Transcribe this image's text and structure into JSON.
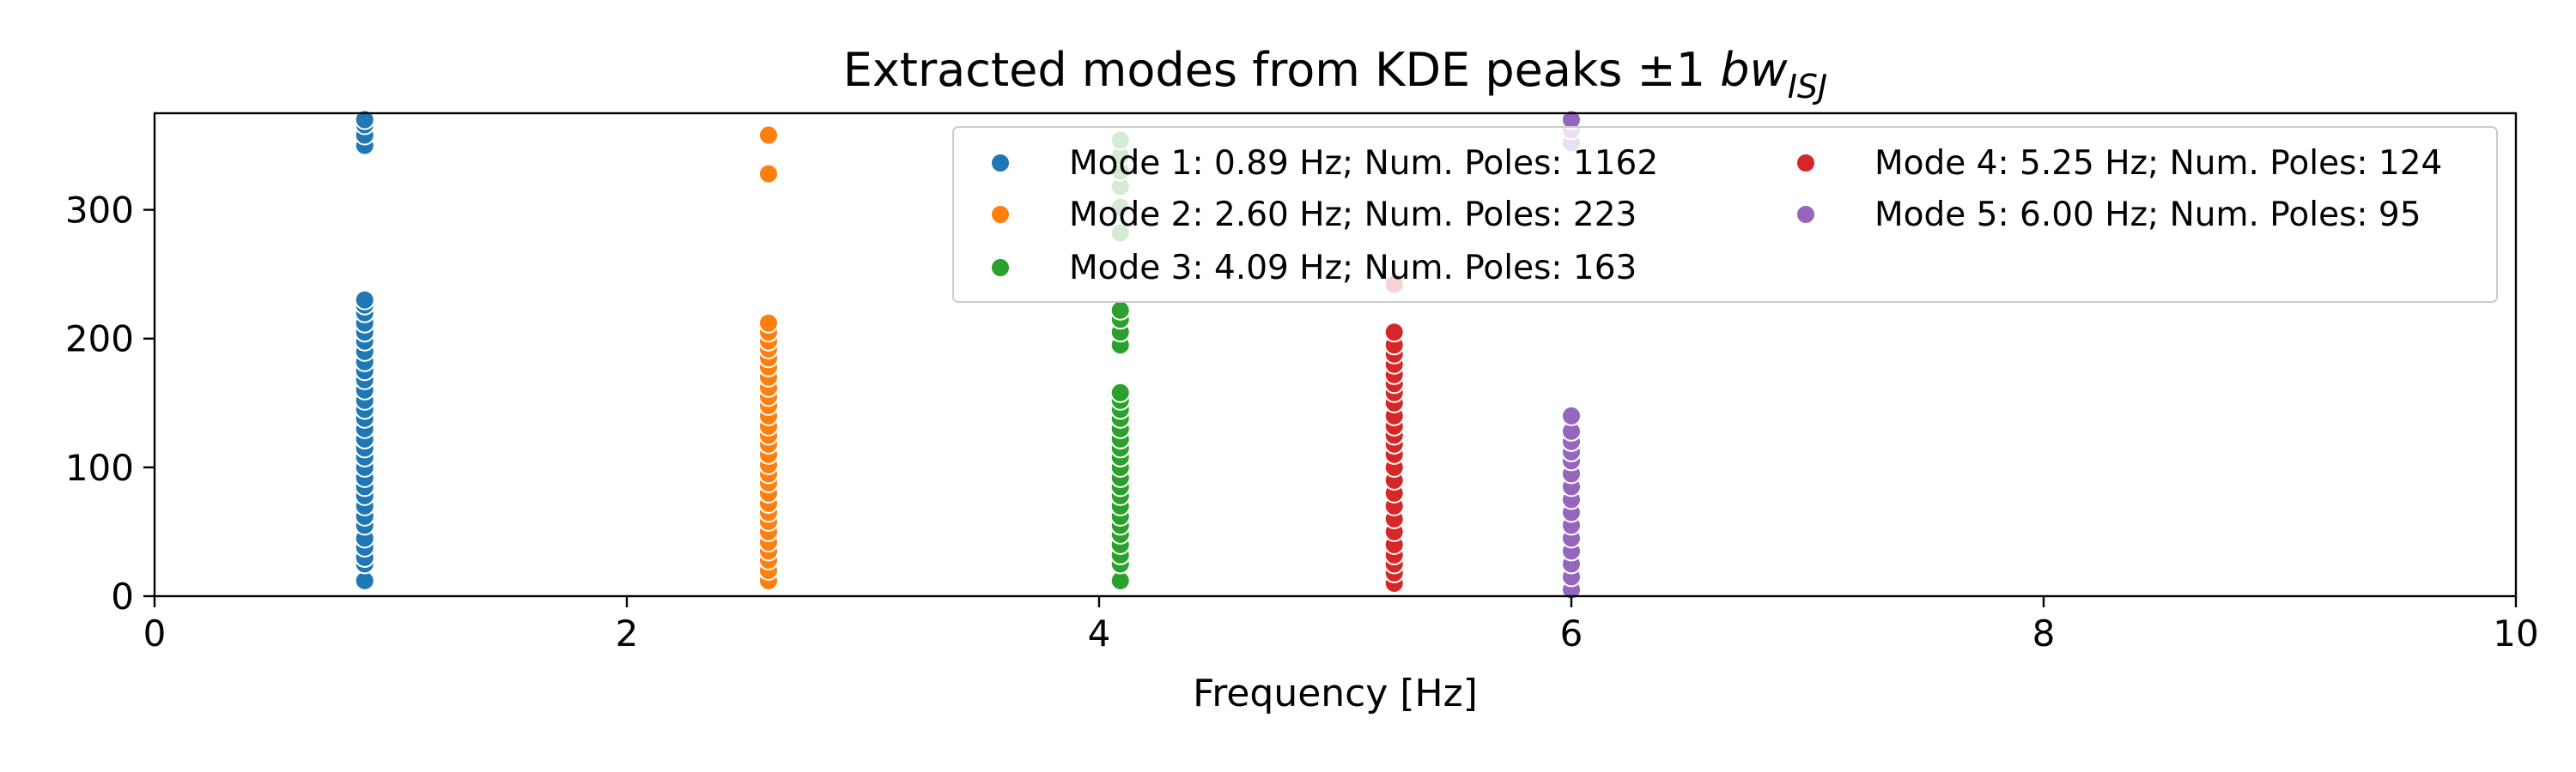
{
  "chart_data": {
    "type": "scatter",
    "title_main": "Extracted modes from KDE peaks ±1 ",
    "title_math": "bw",
    "title_sub": "ISJ",
    "xlabel": "Frequency [Hz]",
    "ylabel": "",
    "xlim": [
      0,
      10
    ],
    "ylim": [
      0,
      375
    ],
    "xticks": [
      0,
      2,
      4,
      6,
      8,
      10
    ],
    "yticks": [
      0,
      100,
      200,
      300
    ],
    "grid": false,
    "legend_position": "top-right",
    "legend_columns": 2,
    "series": [
      {
        "name": "Mode 1: 0.89 Hz; Num. Poles: 1162",
        "color": "#1f77b4",
        "x": 0.89,
        "y": [
          12,
          25,
          30,
          38,
          45,
          55,
          62,
          70,
          78,
          85,
          92,
          100,
          108,
          115,
          122,
          130,
          138,
          145,
          152,
          160,
          168,
          175,
          182,
          190,
          198,
          205,
          212,
          220,
          226,
          230,
          350,
          358,
          366,
          370
        ]
      },
      {
        "name": "Mode 2: 2.60 Hz; Num. Poles: 223",
        "color": "#ff7f0e",
        "x": 2.6,
        "y": [
          12,
          20,
          28,
          35,
          42,
          50,
          58,
          65,
          72,
          80,
          88,
          95,
          102,
          110,
          118,
          125,
          132,
          140,
          148,
          155,
          162,
          170,
          178,
          185,
          192,
          198,
          205,
          212,
          328,
          358
        ]
      },
      {
        "name": "Mode 3: 4.09 Hz; Num. Poles: 163",
        "color": "#2ca02c",
        "x": 4.09,
        "y": [
          12,
          25,
          32,
          40,
          48,
          55,
          62,
          70,
          78,
          85,
          92,
          100,
          108,
          115,
          122,
          130,
          138,
          145,
          152,
          158,
          195,
          205,
          215,
          222,
          282,
          302,
          318,
          330,
          342,
          354
        ]
      },
      {
        "name": "Mode 4: 5.25 Hz; Num. Poles: 124",
        "color": "#d62728",
        "x": 5.25,
        "y": [
          10,
          18,
          25,
          32,
          40,
          50,
          60,
          70,
          80,
          90,
          100,
          110,
          118,
          125,
          132,
          140,
          150,
          158,
          165,
          172,
          180,
          188,
          195,
          205,
          242
        ]
      },
      {
        "name": "Mode 5: 6.00 Hz; Num. Poles: 95",
        "color": "#9467bd",
        "x": 6.0,
        "y": [
          5,
          15,
          25,
          35,
          45,
          55,
          65,
          75,
          85,
          95,
          105,
          112,
          120,
          128,
          140,
          352,
          362,
          370
        ]
      }
    ]
  }
}
